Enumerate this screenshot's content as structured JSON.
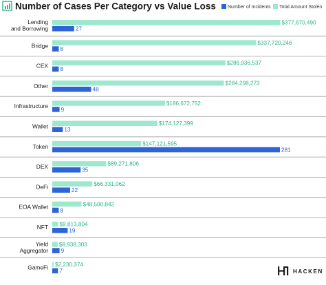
{
  "chart_data": {
    "type": "bar",
    "orientation": "horizontal",
    "title": "Number of Cases Per Category vs Value Loss",
    "categories": [
      "Lending and Borrowing",
      "Bridge",
      "CEX",
      "Other",
      "Infrastructure",
      "Wallet",
      "Token",
      "DEX",
      "DeFi",
      "EOA Wallet",
      "NFT",
      "Yield Aggregator",
      "GameFi"
    ],
    "category_lines": [
      [
        "Lending",
        "and Borrowing"
      ],
      [
        "Bridge"
      ],
      [
        "CEX"
      ],
      [
        "Other"
      ],
      [
        "Infrastructure"
      ],
      [
        "Wallet"
      ],
      [
        "Token"
      ],
      [
        "DEX"
      ],
      [
        "DeFi"
      ],
      [
        "EOA Wallet"
      ],
      [
        "NFT"
      ],
      [
        "Yield",
        "Aggregator"
      ],
      [
        "GameFi"
      ]
    ],
    "series": [
      {
        "name": "Total Amount Stolen",
        "values": [
          377670490,
          337720246,
          286936537,
          284298273,
          186672752,
          174127399,
          147121595,
          89271806,
          66331062,
          48500842,
          9813804,
          8938303,
          2230374
        ],
        "labels": [
          "$377,670,490",
          "$337,720,246",
          "$286,936,537",
          "$284,298,273",
          "$186,672,752",
          "$174,127,399",
          "$147,121,595",
          "$89,271,806",
          "$66,331,062",
          "$48,500,842",
          "$9,813,804",
          "$8,938,303",
          "$2,230,374"
        ]
      },
      {
        "name": "Number of Incidents",
        "values": [
          27,
          8,
          8,
          48,
          9,
          13,
          281,
          35,
          22,
          8,
          19,
          9,
          7
        ],
        "labels": [
          "27",
          "8",
          "8",
          "48",
          "9",
          "13",
          "281",
          "35",
          "22",
          "8",
          "19",
          "9",
          "7"
        ]
      }
    ],
    "legend": {
      "placement": "top-right",
      "order": [
        "Number of Incidents",
        "Total Amount Stolen"
      ]
    },
    "grid": false
  },
  "colors": {
    "stolen": "#9ee8cf",
    "stolen_text": "#2bb38a",
    "incidents": "#2f64d8",
    "incidents_text": "#2b5fd6",
    "separator": "#9a9a9a",
    "title_icon": "#2bb38a"
  },
  "brand": {
    "name": "HACKEN",
    "logo_icon": "hacken-logo-icon"
  },
  "title_icon": "bar-chart-icon"
}
